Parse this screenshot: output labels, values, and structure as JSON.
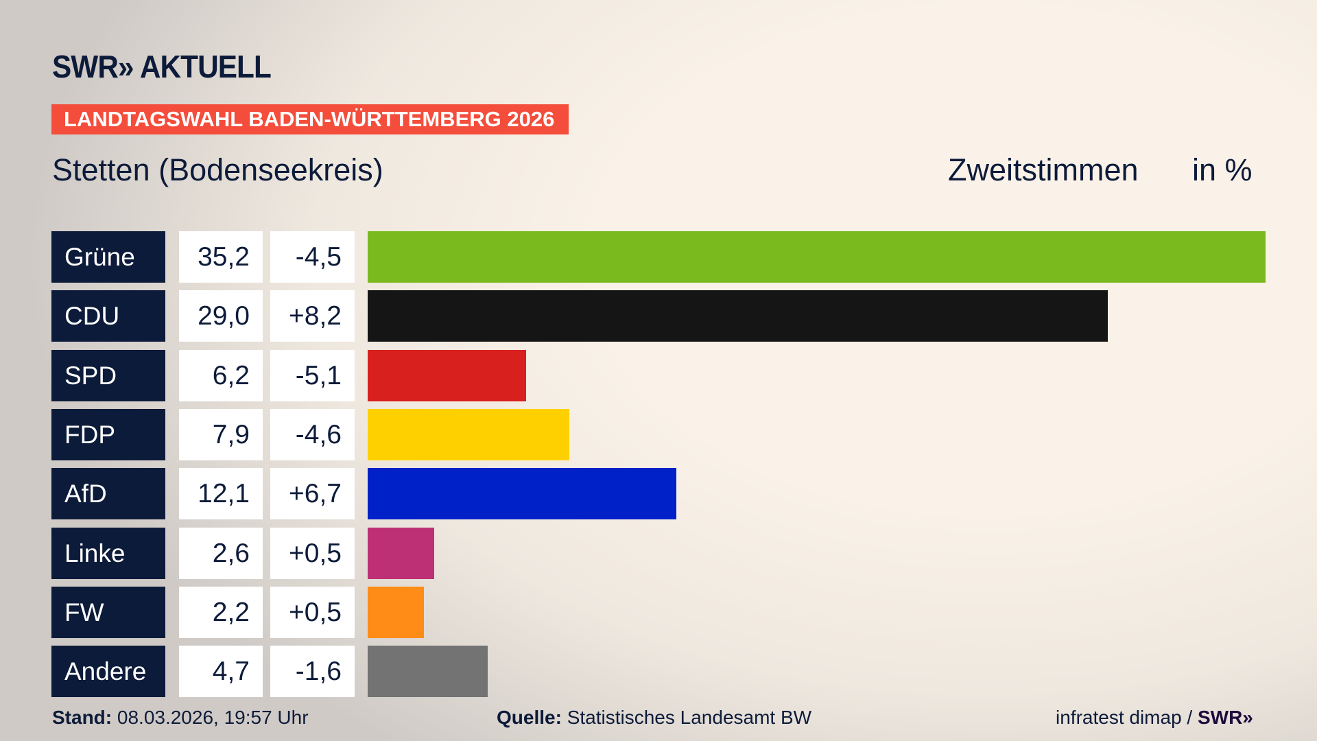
{
  "header": {
    "logo": "SWR» AKTUELL",
    "banner": "LANDTAGSWAHL BADEN-WÜRTTEMBERG 2026",
    "region": "Stetten (Bodenseekreis)",
    "vote_type": "Zweitstimmen",
    "unit": "in %"
  },
  "colors": {
    "navy": "#0d1b3a",
    "banner": "#f44d3b"
  },
  "chart_data": {
    "type": "bar",
    "orientation": "horizontal",
    "categories": [
      "Grüne",
      "CDU",
      "SPD",
      "FDP",
      "AfD",
      "Linke",
      "FW",
      "Andere"
    ],
    "values": [
      35.2,
      29.0,
      6.2,
      7.9,
      12.1,
      2.6,
      2.2,
      4.7
    ],
    "value_labels": [
      "35,2",
      "29,0",
      "6,2",
      "7,9",
      "12,1",
      "2,6",
      "2,2",
      "4,7"
    ],
    "diff_labels": [
      "-4,5",
      "+8,2",
      "-5,1",
      "-4,6",
      "+6,7",
      "+0,5",
      "+0,5",
      "-1,6"
    ],
    "diffs": [
      -4.5,
      8.2,
      -5.1,
      -4.6,
      6.7,
      0.5,
      0.5,
      -1.6
    ],
    "colors": [
      "#7aba1e",
      "#151515",
      "#d8201e",
      "#ffd000",
      "#0020c8",
      "#bd3075",
      "#ff8c16",
      "#737373"
    ],
    "grid": false
  },
  "footer": {
    "stand_label": "Stand:",
    "stand_value": " 08.03.2026, 19:57 Uhr",
    "source_label": "Quelle:",
    "source_value": " Statistisches Landesamt BW",
    "credit": "infratest dimap / ",
    "credit_logo": "SWR»"
  }
}
